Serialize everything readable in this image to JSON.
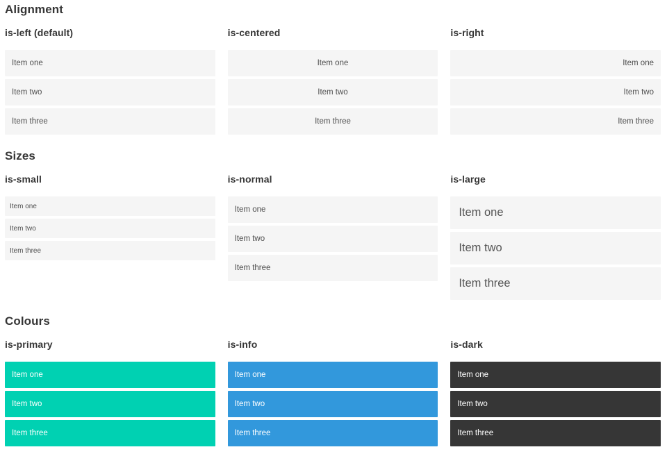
{
  "colors": {
    "primary": "#00d1b2",
    "info": "#3298dc",
    "dark": "#363636",
    "item_background": "#f5f5f5",
    "item_text": "#4f4f4f",
    "heading_text": "#363636",
    "page_background": "#ffffff"
  },
  "sections": [
    {
      "title": "Alignment",
      "columns": [
        {
          "subtitle": "is-left (default)",
          "items": [
            "Item one",
            "Item two",
            "Item three"
          ]
        },
        {
          "subtitle": "is-centered",
          "items": [
            "Item one",
            "Item two",
            "Item three"
          ]
        },
        {
          "subtitle": "is-right",
          "items": [
            "Item one",
            "Item two",
            "Item three"
          ]
        }
      ]
    },
    {
      "title": "Sizes",
      "columns": [
        {
          "subtitle": "is-small",
          "items": [
            "Item one",
            "Item two",
            "Item three"
          ]
        },
        {
          "subtitle": "is-normal",
          "items": [
            "Item one",
            "Item two",
            "Item three"
          ]
        },
        {
          "subtitle": "is-large",
          "items": [
            "Item one",
            "Item two",
            "Item three"
          ]
        }
      ]
    },
    {
      "title": "Colours",
      "columns": [
        {
          "subtitle": "is-primary",
          "items": [
            "Item one",
            "Item two",
            "Item three"
          ]
        },
        {
          "subtitle": "is-info",
          "items": [
            "Item one",
            "Item two",
            "Item three"
          ]
        },
        {
          "subtitle": "is-dark",
          "items": [
            "Item one",
            "Item two",
            "Item three"
          ]
        }
      ]
    }
  ]
}
